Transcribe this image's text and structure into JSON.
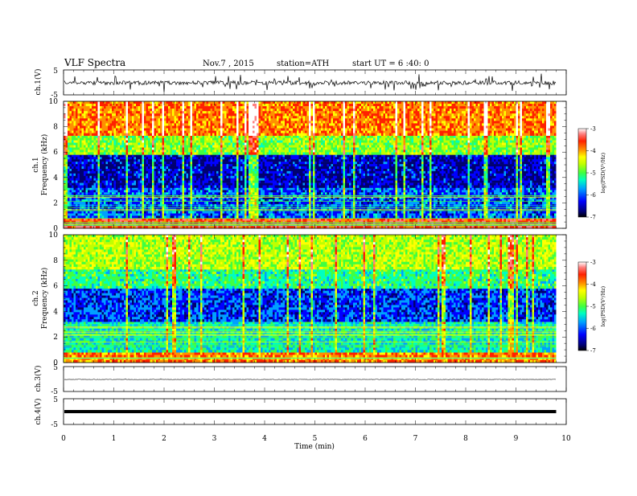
{
  "header": {
    "title": "VLF Spectra",
    "date": "Nov.7 , 2015",
    "station": "station=ATH",
    "start_ut": "start UT = 6 :40: 0"
  },
  "chart_data": [
    {
      "type": "line",
      "panel": "ch1-waveform",
      "ylabel": "ch.1(V)",
      "yticks": [
        "5",
        "-5"
      ],
      "ylim": [
        -5,
        5
      ],
      "note": "noisy waveform near 0 V with spikes up to about +/-2 V"
    },
    {
      "type": "heatmap",
      "panel": "ch1-spectrogram",
      "ylabel": "ch.1 Frequency (kHz)",
      "ylabel_line1": "ch.1",
      "ylabel_line2": "Frequency  (kHz)",
      "yticks": [
        "0",
        "2",
        "4",
        "6",
        "8",
        "10"
      ],
      "ylim": [
        0,
        10
      ],
      "xlim_min": [
        0,
        9.8
      ],
      "colorbar": {
        "label": "log(PSD(V²/Hz)",
        "ticks": [
          "-3",
          "-4",
          "-5",
          "-6",
          "-7"
        ],
        "range": [
          -7,
          -3
        ]
      },
      "bands": [
        {
          "fmin": 0,
          "fmax": 0.8,
          "level": -3.6
        },
        {
          "fmin": 0.8,
          "fmax": 3.2,
          "level": -6.2
        },
        {
          "fmin": 3.2,
          "fmax": 5.8,
          "level": -6.6
        },
        {
          "fmin": 5.8,
          "fmax": 7.3,
          "level": -5.0
        },
        {
          "fmin": 7.3,
          "fmax": 10,
          "level": -3.9
        }
      ]
    },
    {
      "type": "heatmap",
      "panel": "ch2-spectrogram",
      "ylabel": "ch.2 Frequency (kHz)",
      "ylabel_line1": "ch.2",
      "ylabel_line2": "Frequency  (kHz)",
      "yticks": [
        "0",
        "2",
        "4",
        "6",
        "8",
        "10"
      ],
      "ylim": [
        0,
        10
      ],
      "xlim_min": [
        0,
        9.8
      ],
      "colorbar": {
        "label": "log(PSD(V²/Hz)",
        "ticks": [
          "-3",
          "-4",
          "-5",
          "-6",
          "-7"
        ],
        "range": [
          -7,
          -3
        ]
      },
      "bands": [
        {
          "fmin": 0,
          "fmax": 0.8,
          "level": -3.9
        },
        {
          "fmin": 0.8,
          "fmax": 3.2,
          "level": -5.6
        },
        {
          "fmin": 3.2,
          "fmax": 5.8,
          "level": -6.3
        },
        {
          "fmin": 5.8,
          "fmax": 7.3,
          "level": -5.4
        },
        {
          "fmin": 7.3,
          "fmax": 10,
          "level": -4.8
        }
      ]
    },
    {
      "type": "line",
      "panel": "ch3-waveform",
      "ylabel": "ch.3(V)",
      "yticks": [
        "5",
        "-5"
      ],
      "ylim": [
        -5,
        5
      ],
      "note": "flat trace near 0 V"
    },
    {
      "type": "line",
      "panel": "ch4-waveform",
      "ylabel": "ch.4(V)",
      "yticks": [
        "5",
        "-5"
      ],
      "ylim": [
        -5,
        5
      ],
      "note": "thick flat trace near 0 V"
    }
  ],
  "xaxis": {
    "label": "Time  (min)",
    "ticks": [
      "0",
      "1",
      "2",
      "3",
      "4",
      "5",
      "6",
      "7",
      "8",
      "9",
      "10"
    ],
    "range": [
      0,
      10
    ],
    "data_end": 9.8
  },
  "colors": {
    "scale": [
      "#000000",
      "#000070",
      "#0000ff",
      "#00a0ff",
      "#00ffc0",
      "#40ff40",
      "#c0ff00",
      "#ffff00",
      "#ff9000",
      "#ff2000",
      "#ff8080",
      "#ffffff"
    ]
  }
}
